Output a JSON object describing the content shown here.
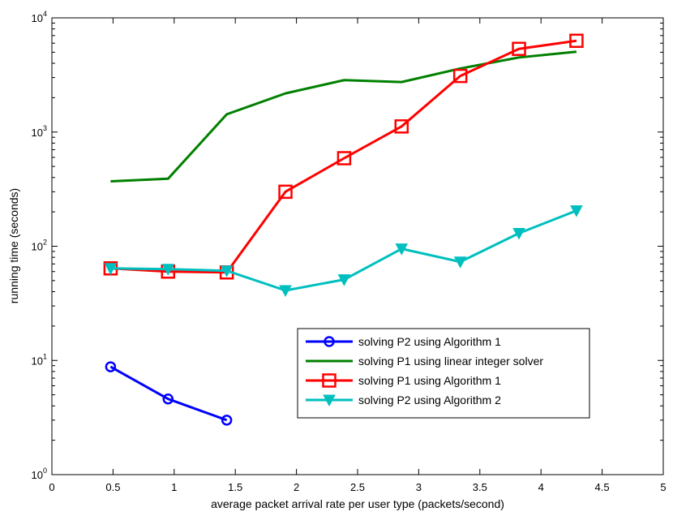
{
  "chart_data": {
    "type": "line",
    "title": "",
    "xlabel": "average packet arrival rate per user type (packets/second)",
    "ylabel": "running time (seconds)",
    "xlim": [
      0,
      5
    ],
    "ylim": [
      1,
      10000
    ],
    "yscale": "log",
    "grid": false,
    "legend_position": "bottom-right",
    "x_ticks": [
      "0",
      "0.5",
      "1",
      "1.5",
      "2",
      "2.5",
      "3",
      "3.5",
      "4",
      "4.5",
      "5"
    ],
    "y_ticks": [
      {
        "base": "10",
        "exp": "0"
      },
      {
        "base": "10",
        "exp": "1"
      },
      {
        "base": "10",
        "exp": "2"
      },
      {
        "base": "10",
        "exp": "3"
      },
      {
        "base": "10",
        "exp": "4"
      }
    ],
    "series": [
      {
        "name": "solving P2 using Algorithm 1",
        "color": "#0000ff",
        "marker": "circle",
        "x": [
          0.48,
          0.95,
          1.43
        ],
        "y": [
          8.8,
          4.6,
          3.0
        ]
      },
      {
        "name": "solving P1 using linear integer solver",
        "color": "#008000",
        "marker": "none",
        "x": [
          0.48,
          0.95,
          1.43,
          1.91,
          2.39,
          2.86,
          3.34,
          3.82,
          4.29
        ],
        "y": [
          370,
          390,
          1430,
          2180,
          2850,
          2740,
          3600,
          4500,
          5050
        ]
      },
      {
        "name": "solving P1 using Algorithm 1",
        "color": "#ff0000",
        "marker": "square",
        "x": [
          0.48,
          0.95,
          1.43,
          1.91,
          2.39,
          2.86,
          3.34,
          3.82,
          4.29
        ],
        "y": [
          64,
          60,
          59,
          300,
          590,
          1120,
          3100,
          5350,
          6300
        ]
      },
      {
        "name": "solving P2 using Algorithm 2",
        "color": "#00bfbf",
        "marker": "triangle-down",
        "x": [
          0.48,
          0.95,
          1.43,
          1.91,
          2.39,
          2.86,
          3.34,
          3.82,
          4.29
        ],
        "y": [
          64,
          63,
          61,
          41,
          51,
          95,
          73,
          130,
          205
        ]
      }
    ]
  }
}
